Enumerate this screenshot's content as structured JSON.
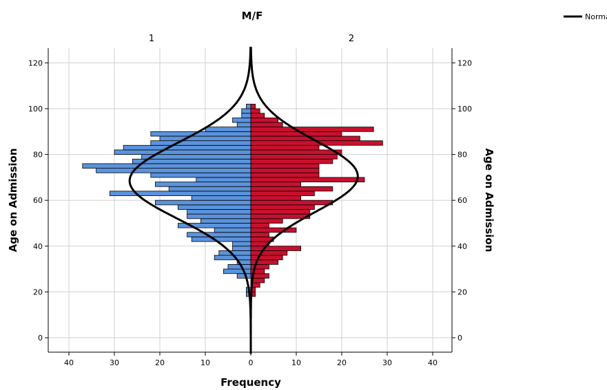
{
  "chart_data": {
    "type": "bar",
    "orientation": "population-pyramid",
    "title": "M/F",
    "panel_labels": [
      "1",
      "2"
    ],
    "xlabel": "Frequency",
    "ylabel_left": "Age on Admission",
    "ylabel_right": "Age on Admission",
    "legend": {
      "label": "Normal",
      "position": "top-right"
    },
    "grid": true,
    "xlim": [
      0,
      40
    ],
    "x_ticks": [
      40,
      30,
      20,
      10,
      0,
      10,
      20,
      30,
      40
    ],
    "ylim": [
      -7,
      127
    ],
    "y_ticks": [
      0,
      20,
      40,
      60,
      80,
      100,
      120
    ],
    "bin_width": 2,
    "colors": {
      "male": "#5b93dc",
      "female": "#c8102e",
      "curve": "#000000"
    },
    "series": [
      {
        "name": "1",
        "side": "left",
        "bins": [
          {
            "y": 18,
            "v": 1
          },
          {
            "y": 20,
            "v": 1
          },
          {
            "y": 26,
            "v": 3
          },
          {
            "y": 28,
            "v": 6
          },
          {
            "y": 30,
            "v": 5
          },
          {
            "y": 32,
            "v": 3
          },
          {
            "y": 34,
            "v": 8
          },
          {
            "y": 36,
            "v": 7
          },
          {
            "y": 38,
            "v": 4
          },
          {
            "y": 40,
            "v": 4
          },
          {
            "y": 42,
            "v": 13
          },
          {
            "y": 44,
            "v": 14
          },
          {
            "y": 46,
            "v": 8
          },
          {
            "y": 48,
            "v": 16
          },
          {
            "y": 50,
            "v": 11
          },
          {
            "y": 52,
            "v": 14
          },
          {
            "y": 54,
            "v": 14
          },
          {
            "y": 56,
            "v": 16
          },
          {
            "y": 58,
            "v": 21
          },
          {
            "y": 60,
            "v": 13
          },
          {
            "y": 62,
            "v": 31
          },
          {
            "y": 64,
            "v": 18
          },
          {
            "y": 66,
            "v": 21
          },
          {
            "y": 68,
            "v": 12
          },
          {
            "y": 70,
            "v": 22
          },
          {
            "y": 72,
            "v": 34
          },
          {
            "y": 74,
            "v": 37
          },
          {
            "y": 76,
            "v": 26
          },
          {
            "y": 78,
            "v": 24
          },
          {
            "y": 80,
            "v": 30
          },
          {
            "y": 82,
            "v": 28
          },
          {
            "y": 84,
            "v": 22
          },
          {
            "y": 86,
            "v": 20
          },
          {
            "y": 88,
            "v": 22
          },
          {
            "y": 90,
            "v": 10
          },
          {
            "y": 92,
            "v": 3
          },
          {
            "y": 94,
            "v": 4
          },
          {
            "y": 96,
            "v": 2
          },
          {
            "y": 98,
            "v": 2
          },
          {
            "y": 100,
            "v": 1
          }
        ],
        "normal": {
          "mean": 68.5,
          "sd": 16.5
        }
      },
      {
        "name": "2",
        "side": "right",
        "bins": [
          {
            "y": 18,
            "v": 1
          },
          {
            "y": 20,
            "v": 1
          },
          {
            "y": 22,
            "v": 2
          },
          {
            "y": 24,
            "v": 3
          },
          {
            "y": 26,
            "v": 4
          },
          {
            "y": 28,
            "v": 3
          },
          {
            "y": 30,
            "v": 4
          },
          {
            "y": 32,
            "v": 6
          },
          {
            "y": 34,
            "v": 7
          },
          {
            "y": 36,
            "v": 8
          },
          {
            "y": 38,
            "v": 11
          },
          {
            "y": 40,
            "v": 4
          },
          {
            "y": 42,
            "v": 5
          },
          {
            "y": 44,
            "v": 4
          },
          {
            "y": 46,
            "v": 10
          },
          {
            "y": 48,
            "v": 4
          },
          {
            "y": 50,
            "v": 7
          },
          {
            "y": 52,
            "v": 13
          },
          {
            "y": 54,
            "v": 13
          },
          {
            "y": 56,
            "v": 14
          },
          {
            "y": 58,
            "v": 18
          },
          {
            "y": 60,
            "v": 11
          },
          {
            "y": 62,
            "v": 14
          },
          {
            "y": 64,
            "v": 18
          },
          {
            "y": 66,
            "v": 11
          },
          {
            "y": 68,
            "v": 25
          },
          {
            "y": 70,
            "v": 15
          },
          {
            "y": 72,
            "v": 15
          },
          {
            "y": 74,
            "v": 15
          },
          {
            "y": 76,
            "v": 18
          },
          {
            "y": 78,
            "v": 19
          },
          {
            "y": 80,
            "v": 20
          },
          {
            "y": 82,
            "v": 15
          },
          {
            "y": 84,
            "v": 29
          },
          {
            "y": 86,
            "v": 24
          },
          {
            "y": 88,
            "v": 20
          },
          {
            "y": 90,
            "v": 27
          },
          {
            "y": 92,
            "v": 7
          },
          {
            "y": 94,
            "v": 6
          },
          {
            "y": 96,
            "v": 3
          },
          {
            "y": 98,
            "v": 2
          },
          {
            "y": 100,
            "v": 1
          }
        ],
        "normal": {
          "mean": 70.5,
          "sd": 15.5
        }
      }
    ]
  }
}
